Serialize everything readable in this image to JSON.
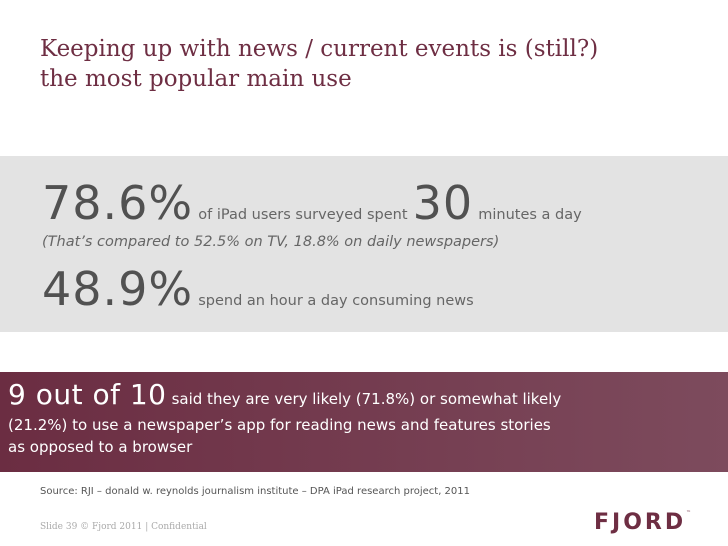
{
  "title": {
    "line1": "Keeping up with news / current events is (still?)",
    "line2": "the most popular main use"
  },
  "stats": {
    "stat1_value": "78.6%",
    "stat1_text": "of iPad users surveyed spent",
    "stat1_minutes": "30",
    "stat1_unit": "minutes a day",
    "comparison": "(That’s compared to 52.5% on TV, 18.8% on daily newspapers)",
    "stat2_value": "48.9%",
    "stat2_text": "spend an hour a day consuming news"
  },
  "highlight": {
    "value": "9 out of 10",
    "text1": "said they are very likely (71.8%) or somewhat likely",
    "text2": "(21.2%)  to use a newspaper’s app for reading news and features stories",
    "text3": "as opposed to a browser"
  },
  "source": "Source: RJI – donald w. reynolds journalism institute – DPA iPad research project, 2011",
  "footer": "Slide 39  © Fjord 2011 | Confidential",
  "logo": {
    "text": "FJORD",
    "mark": "™"
  },
  "colors": {
    "brand": "#6e2e43",
    "band_gray": "#e3e3e3",
    "text_gray": "#515151"
  }
}
